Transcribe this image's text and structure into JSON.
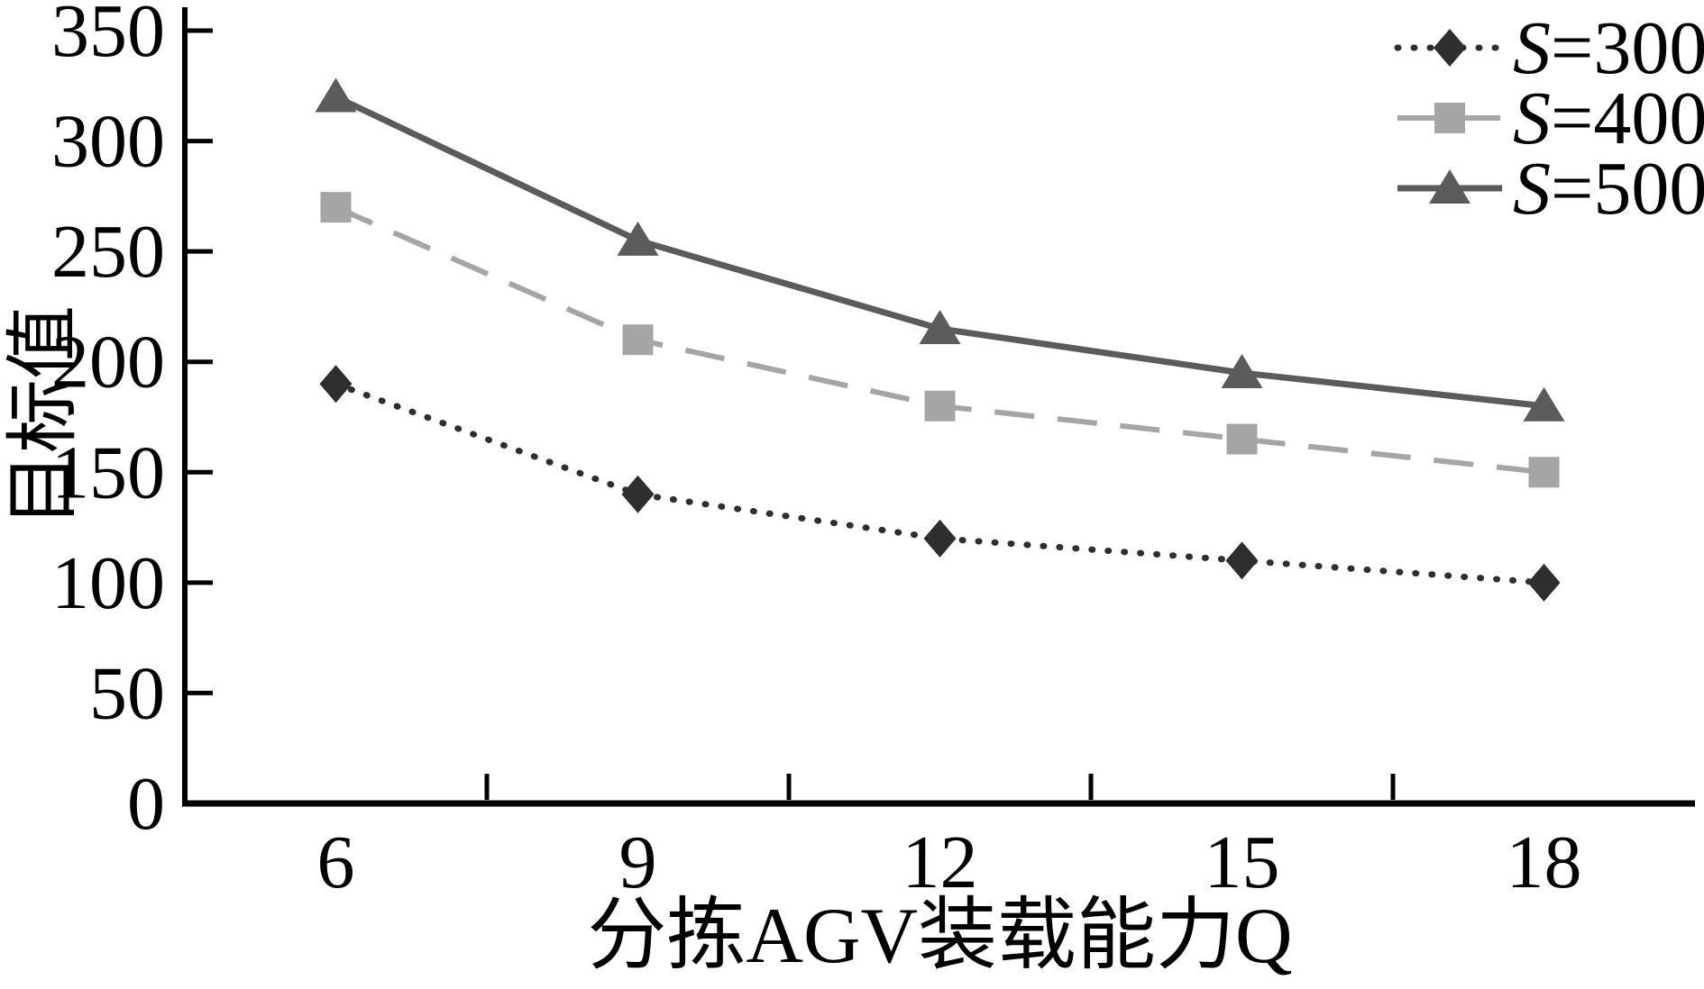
{
  "figure": {
    "background": "#ffffff",
    "axis_color": "#000000",
    "text_color": "#000000"
  },
  "chart_data": {
    "type": "line",
    "title": "",
    "xlabel": "分拣AGV装载能力Q",
    "ylabel": "目标值",
    "x": [
      6,
      9,
      12,
      15,
      18
    ],
    "yticks": [
      0,
      50,
      100,
      150,
      200,
      250,
      300,
      350
    ],
    "ylim": [
      0,
      350
    ],
    "grid": false,
    "legend_position": "top-right",
    "series": [
      {
        "name": "S=300",
        "values": [
          190,
          140,
          120,
          110,
          100
        ],
        "line_style": "dotted",
        "marker": "diamond",
        "color": "#2e2e2e"
      },
      {
        "name": "S=400",
        "values": [
          270,
          210,
          180,
          165,
          150
        ],
        "line_style": "dashed",
        "marker": "square",
        "color": "#a5a5a5"
      },
      {
        "name": "S=500",
        "values": [
          320,
          255,
          215,
          195,
          180
        ],
        "line_style": "solid",
        "marker": "triangle",
        "color": "#5b5b5b"
      }
    ]
  }
}
